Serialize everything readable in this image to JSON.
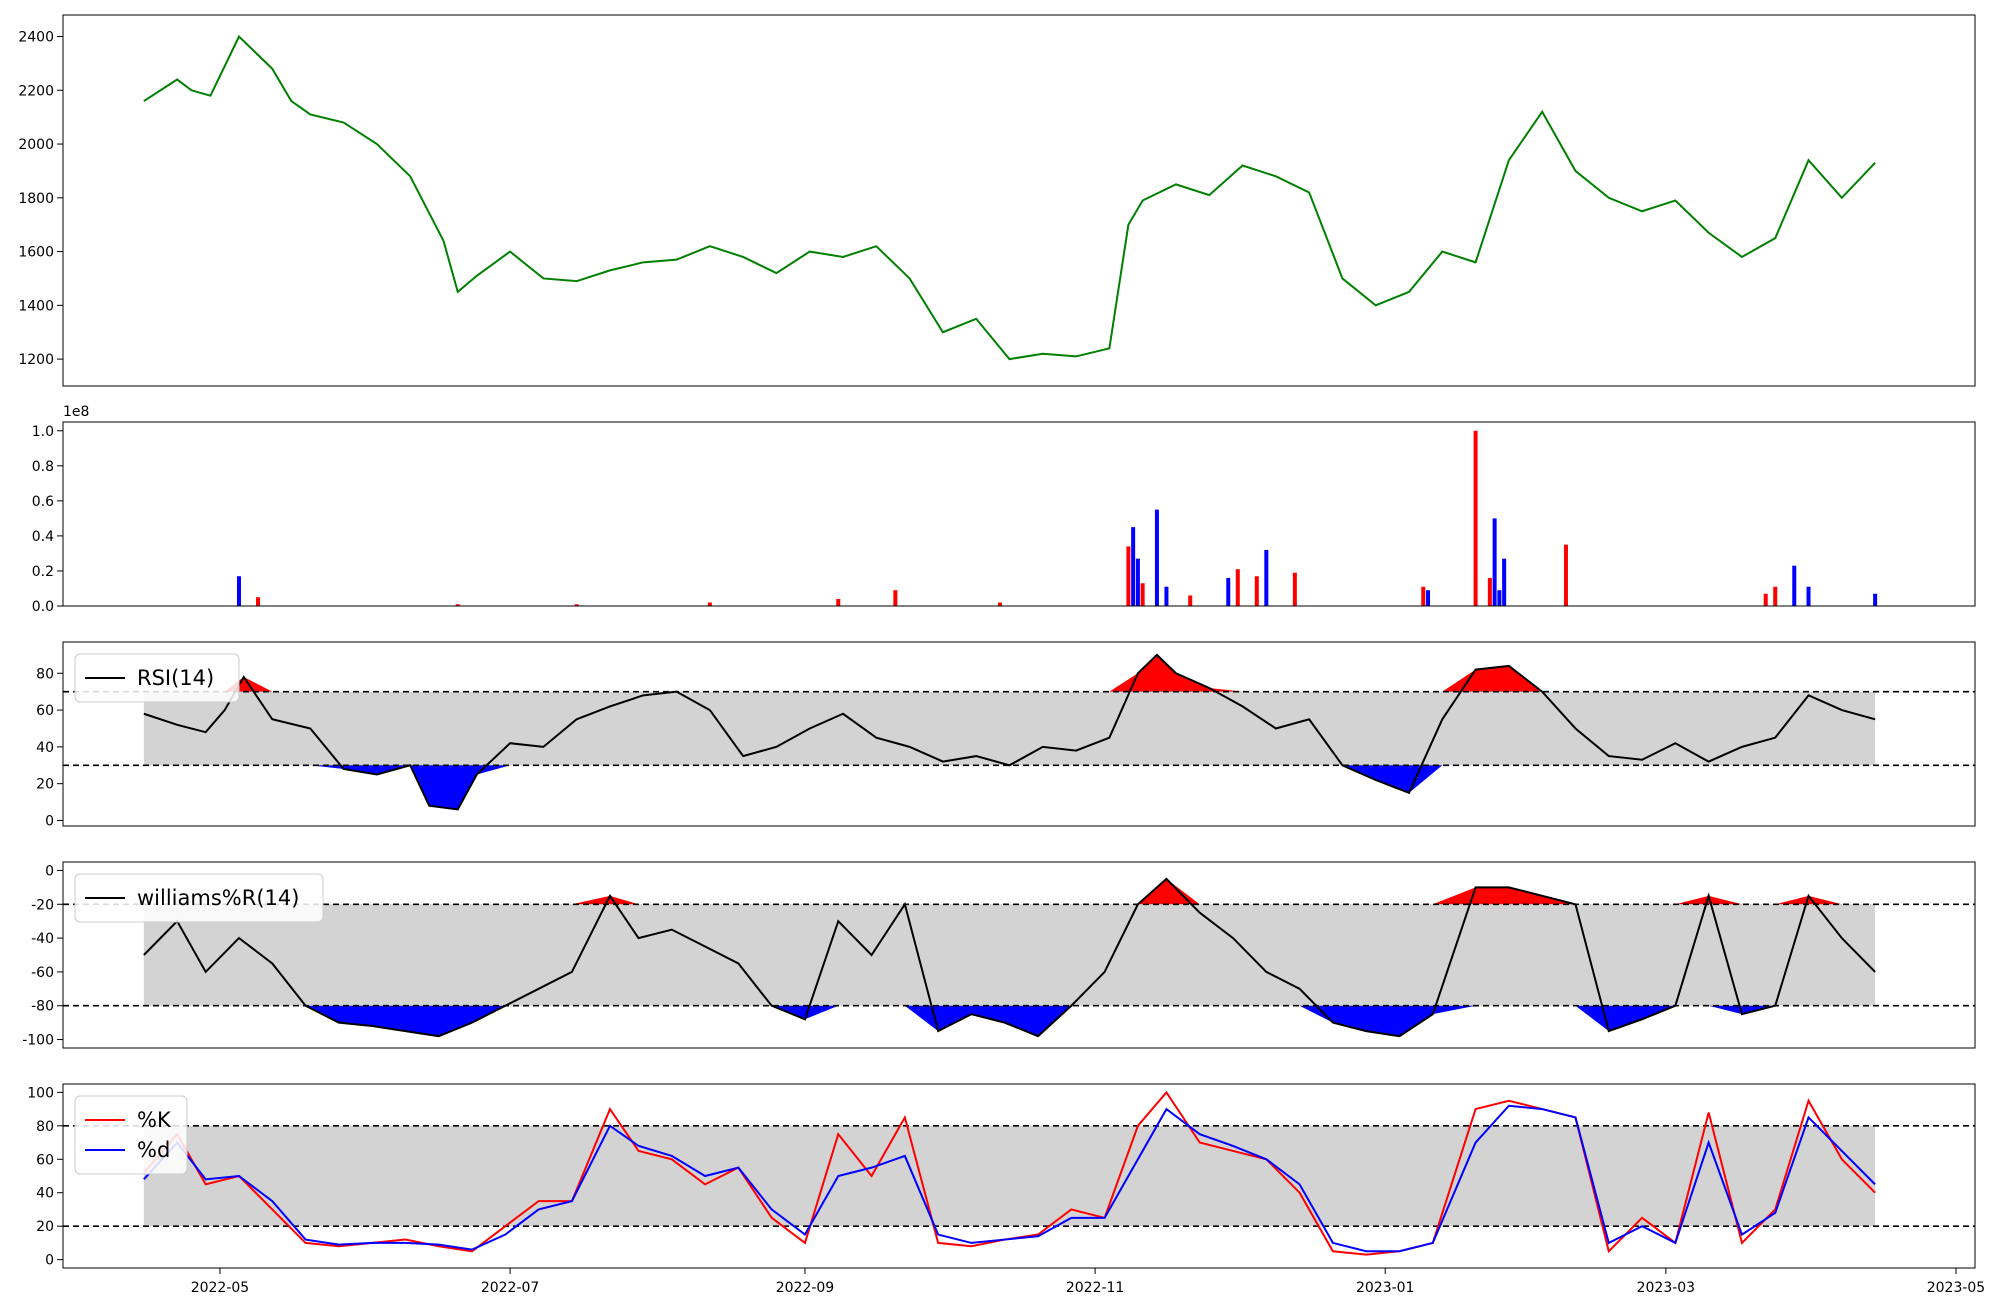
{
  "chart_data": [
    {
      "type": "line",
      "panel": "price",
      "ylim": [
        1100,
        2480
      ],
      "yticks": [
        "1200",
        "1400",
        "1600",
        "1800",
        "2000",
        "2200",
        "2400"
      ],
      "colors": {
        "line": "#008000"
      },
      "x": [
        "2022-04-15",
        "2022-04-22",
        "2022-04-25",
        "2022-04-29",
        "2022-05-05",
        "2022-05-12",
        "2022-05-16",
        "2022-05-20",
        "2022-05-27",
        "2022-06-03",
        "2022-06-10",
        "2022-06-17",
        "2022-06-20",
        "2022-06-24",
        "2022-07-01",
        "2022-07-08",
        "2022-07-15",
        "2022-07-22",
        "2022-07-29",
        "2022-08-05",
        "2022-08-12",
        "2022-08-19",
        "2022-08-26",
        "2022-09-02",
        "2022-09-09",
        "2022-09-16",
        "2022-09-23",
        "2022-09-30",
        "2022-10-07",
        "2022-10-14",
        "2022-10-21",
        "2022-10-28",
        "2022-11-04",
        "2022-11-08",
        "2022-11-11",
        "2022-11-18",
        "2022-11-25",
        "2022-12-02",
        "2022-12-09",
        "2022-12-16",
        "2022-12-23",
        "2022-12-30",
        "2023-01-06",
        "2023-01-13",
        "2023-01-20",
        "2023-01-27",
        "2023-02-03",
        "2023-02-10",
        "2023-02-17",
        "2023-02-24",
        "2023-03-03",
        "2023-03-10",
        "2023-03-17",
        "2023-03-24",
        "2023-03-31",
        "2023-04-07",
        "2023-04-14"
      ],
      "values": [
        2160,
        2240,
        2200,
        2180,
        2400,
        2280,
        2160,
        2110,
        2080,
        2000,
        1880,
        1640,
        1450,
        1510,
        1600,
        1500,
        1490,
        1530,
        1560,
        1570,
        1620,
        1580,
        1520,
        1600,
        1580,
        1620,
        1500,
        1300,
        1350,
        1200,
        1220,
        1210,
        1240,
        1700,
        1790,
        1850,
        1810,
        1920,
        1880,
        1820,
        1500,
        1400,
        1450,
        1600,
        1560,
        1940,
        2120,
        1900,
        1800,
        1750,
        1790,
        1670,
        1580,
        1650,
        1940,
        1800,
        1930
      ]
    },
    {
      "type": "bar",
      "panel": "volume",
      "exponent_label": "1e8",
      "ylim": [
        0,
        1.05
      ],
      "yticks": [
        "0.0",
        "0.2",
        "0.4",
        "0.6",
        "0.8",
        "1.0"
      ],
      "colors": {
        "up": "#ff0000",
        "down": "#0000ff"
      },
      "x": [
        "2022-05-05",
        "2022-05-09",
        "2022-06-20",
        "2022-07-15",
        "2022-08-12",
        "2022-09-08",
        "2022-09-20",
        "2022-10-12",
        "2022-11-08",
        "2022-11-09",
        "2022-11-10",
        "2022-11-11",
        "2022-11-14",
        "2022-11-16",
        "2022-11-21",
        "2022-11-29",
        "2022-12-01",
        "2022-12-05",
        "2022-12-07",
        "2022-12-13",
        "2023-01-09",
        "2023-01-10",
        "2023-01-20",
        "2023-01-23",
        "2023-01-24",
        "2023-01-25",
        "2023-01-26",
        "2023-02-08",
        "2023-03-22",
        "2023-03-24",
        "2023-03-28",
        "2023-03-31",
        "2023-04-14"
      ],
      "values": [
        0.17,
        0.05,
        0.01,
        0.01,
        0.02,
        0.04,
        0.09,
        0.02,
        0.34,
        0.45,
        0.27,
        0.13,
        0.55,
        0.11,
        0.06,
        0.16,
        0.21,
        0.17,
        0.32,
        0.19,
        0.11,
        0.09,
        1.0,
        0.16,
        0.5,
        0.09,
        0.27,
        0.35,
        0.07,
        0.11,
        0.23,
        0.11,
        0.07
      ],
      "direction": [
        "down",
        "up",
        "up",
        "up",
        "up",
        "up",
        "up",
        "up",
        "up",
        "down",
        "down",
        "up",
        "down",
        "down",
        "up",
        "down",
        "up",
        "up",
        "down",
        "up",
        "up",
        "down",
        "up",
        "up",
        "down",
        "down",
        "down",
        "up",
        "up",
        "up",
        "down",
        "down",
        "down"
      ]
    },
    {
      "type": "line",
      "panel": "rsi",
      "ylim": [
        -3,
        97
      ],
      "yticks": [
        "0",
        "20",
        "40",
        "60",
        "80"
      ],
      "bands": [
        30,
        70
      ],
      "legend": [
        "RSI(14)"
      ],
      "legend_position": "top-left",
      "colors": {
        "line": "#000000",
        "above": "#ff0000",
        "below": "#0000ff",
        "band": "#d3d3d3"
      },
      "x": [
        "2022-04-15",
        "2022-04-22",
        "2022-04-28",
        "2022-05-02",
        "2022-05-06",
        "2022-05-12",
        "2022-05-20",
        "2022-05-27",
        "2022-06-03",
        "2022-06-10",
        "2022-06-14",
        "2022-06-20",
        "2022-06-24",
        "2022-07-01",
        "2022-07-08",
        "2022-07-15",
        "2022-07-22",
        "2022-07-29",
        "2022-08-05",
        "2022-08-12",
        "2022-08-19",
        "2022-08-26",
        "2022-09-02",
        "2022-09-09",
        "2022-09-16",
        "2022-09-23",
        "2022-09-30",
        "2022-10-07",
        "2022-10-14",
        "2022-10-21",
        "2022-10-28",
        "2022-11-04",
        "2022-11-10",
        "2022-11-14",
        "2022-11-18",
        "2022-11-25",
        "2022-12-02",
        "2022-12-09",
        "2022-12-16",
        "2022-12-23",
        "2022-12-30",
        "2023-01-06",
        "2023-01-13",
        "2023-01-20",
        "2023-01-27",
        "2023-02-03",
        "2023-02-10",
        "2023-02-17",
        "2023-02-24",
        "2023-03-03",
        "2023-03-10",
        "2023-03-17",
        "2023-03-24",
        "2023-03-31",
        "2023-04-07",
        "2023-04-14"
      ],
      "values": [
        58,
        52,
        48,
        60,
        78,
        55,
        50,
        28,
        25,
        30,
        8,
        6,
        25,
        42,
        40,
        55,
        62,
        68,
        70,
        60,
        35,
        40,
        50,
        58,
        45,
        40,
        32,
        35,
        30,
        40,
        38,
        45,
        80,
        90,
        80,
        72,
        62,
        50,
        55,
        30,
        22,
        15,
        55,
        82,
        84,
        70,
        50,
        35,
        33,
        42,
        32,
        40,
        45,
        68,
        60,
        55
      ]
    },
    {
      "type": "line",
      "panel": "williams",
      "ylim": [
        -105,
        5
      ],
      "yticks": [
        "0",
        "-20",
        "-40",
        "-60",
        "-80",
        "-100"
      ],
      "bands": [
        -20,
        -80
      ],
      "legend": [
        "williams%R(14)"
      ],
      "legend_position": "top-left",
      "colors": {
        "line": "#000000",
        "above": "#ff0000",
        "below": "#0000ff",
        "band": "#d3d3d3"
      },
      "x": [
        "2022-04-15",
        "2022-04-22",
        "2022-04-28",
        "2022-05-05",
        "2022-05-12",
        "2022-05-19",
        "2022-05-26",
        "2022-06-02",
        "2022-06-09",
        "2022-06-16",
        "2022-06-23",
        "2022-06-30",
        "2022-07-07",
        "2022-07-14",
        "2022-07-22",
        "2022-07-28",
        "2022-08-04",
        "2022-08-11",
        "2022-08-18",
        "2022-08-25",
        "2022-09-01",
        "2022-09-08",
        "2022-09-15",
        "2022-09-22",
        "2022-09-29",
        "2022-10-06",
        "2022-10-13",
        "2022-10-20",
        "2022-10-27",
        "2022-11-03",
        "2022-11-10",
        "2022-11-16",
        "2022-11-23",
        "2022-11-30",
        "2022-12-07",
        "2022-12-14",
        "2022-12-21",
        "2022-12-28",
        "2023-01-04",
        "2023-01-11",
        "2023-01-20",
        "2023-01-27",
        "2023-02-03",
        "2023-02-10",
        "2023-02-17",
        "2023-02-24",
        "2023-03-03",
        "2023-03-10",
        "2023-03-17",
        "2023-03-24",
        "2023-03-31",
        "2023-04-07",
        "2023-04-14"
      ],
      "values": [
        -50,
        -30,
        -60,
        -40,
        -55,
        -80,
        -90,
        -92,
        -95,
        -98,
        -90,
        -80,
        -70,
        -60,
        -15,
        -40,
        -35,
        -45,
        -55,
        -80,
        -88,
        -30,
        -50,
        -20,
        -95,
        -85,
        -90,
        -98,
        -80,
        -60,
        -20,
        -5,
        -25,
        -40,
        -60,
        -70,
        -90,
        -95,
        -98,
        -85,
        -10,
        -10,
        -15,
        -20,
        -95,
        -88,
        -80,
        -15,
        -85,
        -80,
        -15,
        -40,
        -60
      ]
    },
    {
      "type": "line",
      "panel": "stochastic",
      "ylim": [
        -5,
        105
      ],
      "yticks": [
        "0",
        "20",
        "40",
        "60",
        "80",
        "100"
      ],
      "bands": [
        20,
        80
      ],
      "legend": [
        "%K",
        "%d"
      ],
      "legend_position": "top-left",
      "colors": {
        "%K": "#ff0000",
        "%d": "#0000ff",
        "band": "#d3d3d3"
      },
      "xlim": [
        "2022-03-29",
        "2023-05-05"
      ],
      "xticks": [
        "2022-05",
        "2022-07",
        "2022-09",
        "2022-11",
        "2023-01",
        "2023-03",
        "2023-05"
      ],
      "x": [
        "2022-04-15",
        "2022-04-22",
        "2022-04-28",
        "2022-05-05",
        "2022-05-12",
        "2022-05-19",
        "2022-05-26",
        "2022-06-02",
        "2022-06-09",
        "2022-06-16",
        "2022-06-23",
        "2022-06-30",
        "2022-07-07",
        "2022-07-14",
        "2022-07-22",
        "2022-07-28",
        "2022-08-04",
        "2022-08-11",
        "2022-08-18",
        "2022-08-25",
        "2022-09-01",
        "2022-09-08",
        "2022-09-15",
        "2022-09-22",
        "2022-09-29",
        "2022-10-06",
        "2022-10-13",
        "2022-10-20",
        "2022-10-27",
        "2022-11-03",
        "2022-11-10",
        "2022-11-16",
        "2022-11-23",
        "2022-11-30",
        "2022-12-07",
        "2022-12-14",
        "2022-12-21",
        "2022-12-28",
        "2023-01-04",
        "2023-01-11",
        "2023-01-20",
        "2023-01-27",
        "2023-02-03",
        "2023-02-10",
        "2023-02-17",
        "2023-02-24",
        "2023-03-03",
        "2023-03-10",
        "2023-03-17",
        "2023-03-24",
        "2023-03-31",
        "2023-04-07",
        "2023-04-14"
      ],
      "series": [
        {
          "name": "%K",
          "values": [
            52,
            75,
            45,
            50,
            30,
            10,
            8,
            10,
            12,
            8,
            5,
            20,
            35,
            35,
            90,
            65,
            60,
            45,
            55,
            25,
            10,
            75,
            50,
            85,
            10,
            8,
            12,
            15,
            30,
            25,
            80,
            100,
            70,
            65,
            60,
            40,
            5,
            3,
            5,
            10,
            90,
            95,
            90,
            85,
            5,
            25,
            10,
            88,
            10,
            30,
            95,
            60,
            40
          ]
        },
        {
          "name": "%d",
          "values": [
            48,
            70,
            48,
            50,
            35,
            12,
            9,
            10,
            10,
            9,
            6,
            15,
            30,
            35,
            80,
            68,
            62,
            50,
            55,
            30,
            15,
            50,
            55,
            62,
            15,
            10,
            12,
            14,
            25,
            25,
            60,
            90,
            75,
            68,
            60,
            45,
            10,
            5,
            5,
            10,
            70,
            92,
            90,
            85,
            10,
            20,
            10,
            70,
            15,
            28,
            85,
            65,
            45
          ]
        }
      ]
    }
  ]
}
